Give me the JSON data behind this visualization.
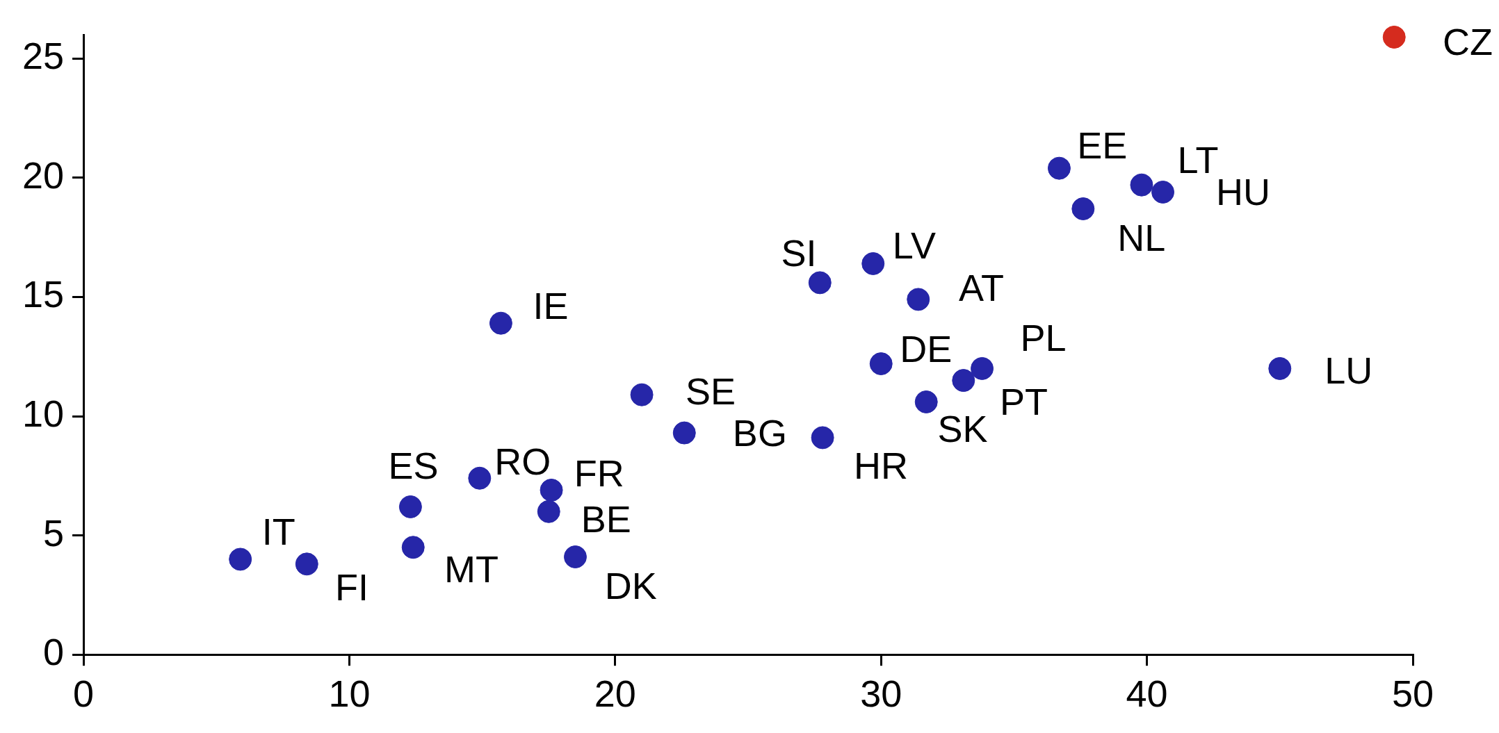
{
  "chart_data": {
    "type": "scatter",
    "xlim": [
      0,
      50
    ],
    "ylim": [
      0,
      26
    ],
    "xticks": [
      0,
      10,
      20,
      30,
      40,
      50
    ],
    "yticks": [
      0,
      5,
      10,
      15,
      20,
      25
    ],
    "grid": false,
    "legend": false,
    "marker": "circle",
    "series": [
      {
        "color": "#2626a8",
        "x": [
          5.9,
          8.4,
          12.3,
          12.4,
          14.9,
          15.7,
          17.6,
          17.5,
          18.5,
          21.0,
          22.6,
          27.7,
          27.8,
          29.7,
          30.0,
          31.4,
          31.7,
          33.1,
          33.8,
          36.7,
          37.6,
          39.8,
          40.6,
          45.0
        ],
        "values": [
          4.0,
          3.8,
          6.2,
          4.5,
          7.4,
          13.9,
          6.9,
          6.0,
          4.1,
          10.9,
          9.3,
          15.6,
          9.1,
          16.4,
          12.2,
          14.9,
          10.6,
          11.5,
          12.0,
          20.4,
          18.7,
          19.7,
          19.4,
          12.0
        ]
      },
      {
        "color": "#d52b1e",
        "x": [
          49.3
        ],
        "values": [
          25.9
        ]
      }
    ],
    "annotations": [
      {
        "text": "IT",
        "x": 5.9,
        "y": 4.0
      },
      {
        "text": "FI",
        "x": 8.4,
        "y": 3.8
      },
      {
        "text": "ES",
        "x": 12.3,
        "y": 6.2
      },
      {
        "text": "MT",
        "x": 12.4,
        "y": 4.5
      },
      {
        "text": "RO",
        "x": 14.9,
        "y": 7.4
      },
      {
        "text": "IE",
        "x": 15.7,
        "y": 13.9
      },
      {
        "text": "FR",
        "x": 17.6,
        "y": 6.9
      },
      {
        "text": "BE",
        "x": 17.5,
        "y": 6.0
      },
      {
        "text": "DK",
        "x": 18.5,
        "y": 4.1
      },
      {
        "text": "SE",
        "x": 21.0,
        "y": 10.9
      },
      {
        "text": "BG",
        "x": 22.6,
        "y": 9.3
      },
      {
        "text": "SI",
        "x": 27.7,
        "y": 15.6
      },
      {
        "text": "HR",
        "x": 27.8,
        "y": 9.1
      },
      {
        "text": "LV",
        "x": 29.7,
        "y": 16.4
      },
      {
        "text": "DE",
        "x": 30.0,
        "y": 12.2
      },
      {
        "text": "AT",
        "x": 31.4,
        "y": 14.9
      },
      {
        "text": "SK",
        "x": 31.7,
        "y": 10.6
      },
      {
        "text": "PT",
        "x": 33.1,
        "y": 11.5
      },
      {
        "text": "PL",
        "x": 33.8,
        "y": 12.0
      },
      {
        "text": "EE",
        "x": 36.7,
        "y": 20.4
      },
      {
        "text": "NL",
        "x": 37.6,
        "y": 18.7
      },
      {
        "text": "LT",
        "x": 39.8,
        "y": 19.7
      },
      {
        "text": "HU",
        "x": 40.6,
        "y": 19.4
      },
      {
        "text": "LU",
        "x": 45.0,
        "y": 12.0
      },
      {
        "text": "CZ",
        "x": 49.3,
        "y": 25.9
      }
    ]
  }
}
